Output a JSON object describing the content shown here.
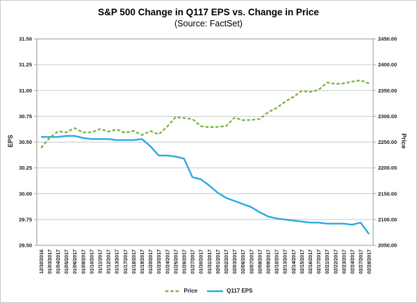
{
  "header": {
    "title": "S&P 500 Change in Q117 EPS vs. Change in Price",
    "subtitle": "(Source: FactSet)"
  },
  "colors": {
    "price_green": "#7CB540",
    "eps_blue": "#29A9E1",
    "gridline": "#C9C9C9",
    "axis": "#A6A6A6",
    "text": "#1A1A1A"
  },
  "chart_data": {
    "type": "line",
    "title": "S&P 500 Change in Q117 EPS vs. Change in Price",
    "subtitle": "(Source: FactSet)",
    "grid": "horizontal",
    "legend_position": "bottom",
    "categories": [
      "12/30/2016",
      "01/03/2017",
      "01/04/2017",
      "01/05/2017",
      "01/06/2017",
      "01/09/2017",
      "01/10/2017",
      "01/11/2017",
      "01/12/2017",
      "01/13/2017",
      "01/17/2017",
      "01/18/2017",
      "01/19/2017",
      "01/20/2017",
      "01/23/2017",
      "01/24/2017",
      "01/25/2017",
      "01/26/2017",
      "01/27/2017",
      "01/30/2017",
      "01/31/2017",
      "02/01/2017",
      "02/02/2017",
      "02/03/2017",
      "02/06/2017",
      "02/07/2017",
      "02/08/2017",
      "02/09/2017",
      "02/10/2017",
      "02/13/2017",
      "02/14/2017",
      "02/15/2017",
      "02/16/2017",
      "02/17/2017",
      "02/21/2017",
      "02/22/2017",
      "02/23/2017",
      "02/24/2017",
      "02/27/2017",
      "02/28/2017"
    ],
    "axes": {
      "left": {
        "label": "EPS",
        "min": 29.5,
        "max": 31.5,
        "ticks": [
          "31.50",
          "31.25",
          "31.00",
          "30.75",
          "30.50",
          "30.25",
          "30.00",
          "29.75",
          "29.50"
        ]
      },
      "right": {
        "label": "Price",
        "min": 2050.0,
        "max": 2450.0,
        "ticks": [
          "2450.00",
          "2400.00",
          "2350.00",
          "2300.00",
          "2250.00",
          "2200.00",
          "2150.00",
          "2100.00",
          "2050.00"
        ]
      }
    },
    "series": [
      {
        "name": "Price",
        "axis": "right",
        "style": "dashed",
        "color": "#7CB540",
        "values": [
          2238.83,
          2257.83,
          2270.75,
          2269.0,
          2276.98,
          2268.9,
          2268.9,
          2275.32,
          2270.44,
          2274.64,
          2267.89,
          2271.89,
          2263.69,
          2271.31,
          2265.2,
          2280.07,
          2298.37,
          2296.68,
          2294.69,
          2280.9,
          2278.87,
          2279.55,
          2280.85,
          2297.42,
          2292.56,
          2293.08,
          2294.67,
          2307.87,
          2316.1,
          2328.25,
          2337.58,
          2349.25,
          2347.22,
          2351.16,
          2365.38,
          2362.82,
          2363.81,
          2367.34,
          2369.73,
          2363.64
        ]
      },
      {
        "name": "Q117 EPS",
        "axis": "left",
        "style": "solid",
        "color": "#29A9E1",
        "values": [
          30.55,
          30.55,
          30.55,
          30.56,
          30.56,
          30.54,
          30.53,
          30.53,
          30.53,
          30.52,
          30.52,
          30.52,
          30.53,
          30.46,
          30.37,
          30.37,
          30.36,
          30.34,
          30.16,
          30.14,
          30.08,
          30.01,
          29.96,
          29.93,
          29.9,
          29.87,
          29.82,
          29.78,
          29.76,
          29.75,
          29.74,
          29.73,
          29.72,
          29.72,
          29.71,
          29.71,
          29.71,
          29.7,
          29.72,
          29.61
        ]
      }
    ]
  }
}
